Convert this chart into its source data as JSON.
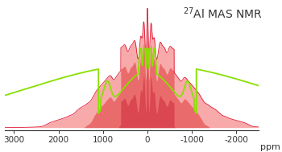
{
  "title": "$^{27}$Al MAS NMR",
  "xlabel": "ppm",
  "xlim": [
    3200,
    -2500
  ],
  "ylim": [
    -0.02,
    1.05
  ],
  "background_color": "#ffffff",
  "tick_color": "#333333",
  "title_fontsize": 10,
  "xlabel_fontsize": 8,
  "tick_fontsize": 7.5,
  "fill_color_light": "#f07878",
  "fill_color_mid": "#e85555",
  "line_color_green": "#88e000",
  "line_color_red": "#dd0020",
  "xticks": [
    3000,
    2000,
    1000,
    0,
    -1000,
    -2000
  ],
  "xtick_labels": [
    "3000",
    "2000",
    "1000",
    "0",
    "-1000",
    "-2000"
  ]
}
